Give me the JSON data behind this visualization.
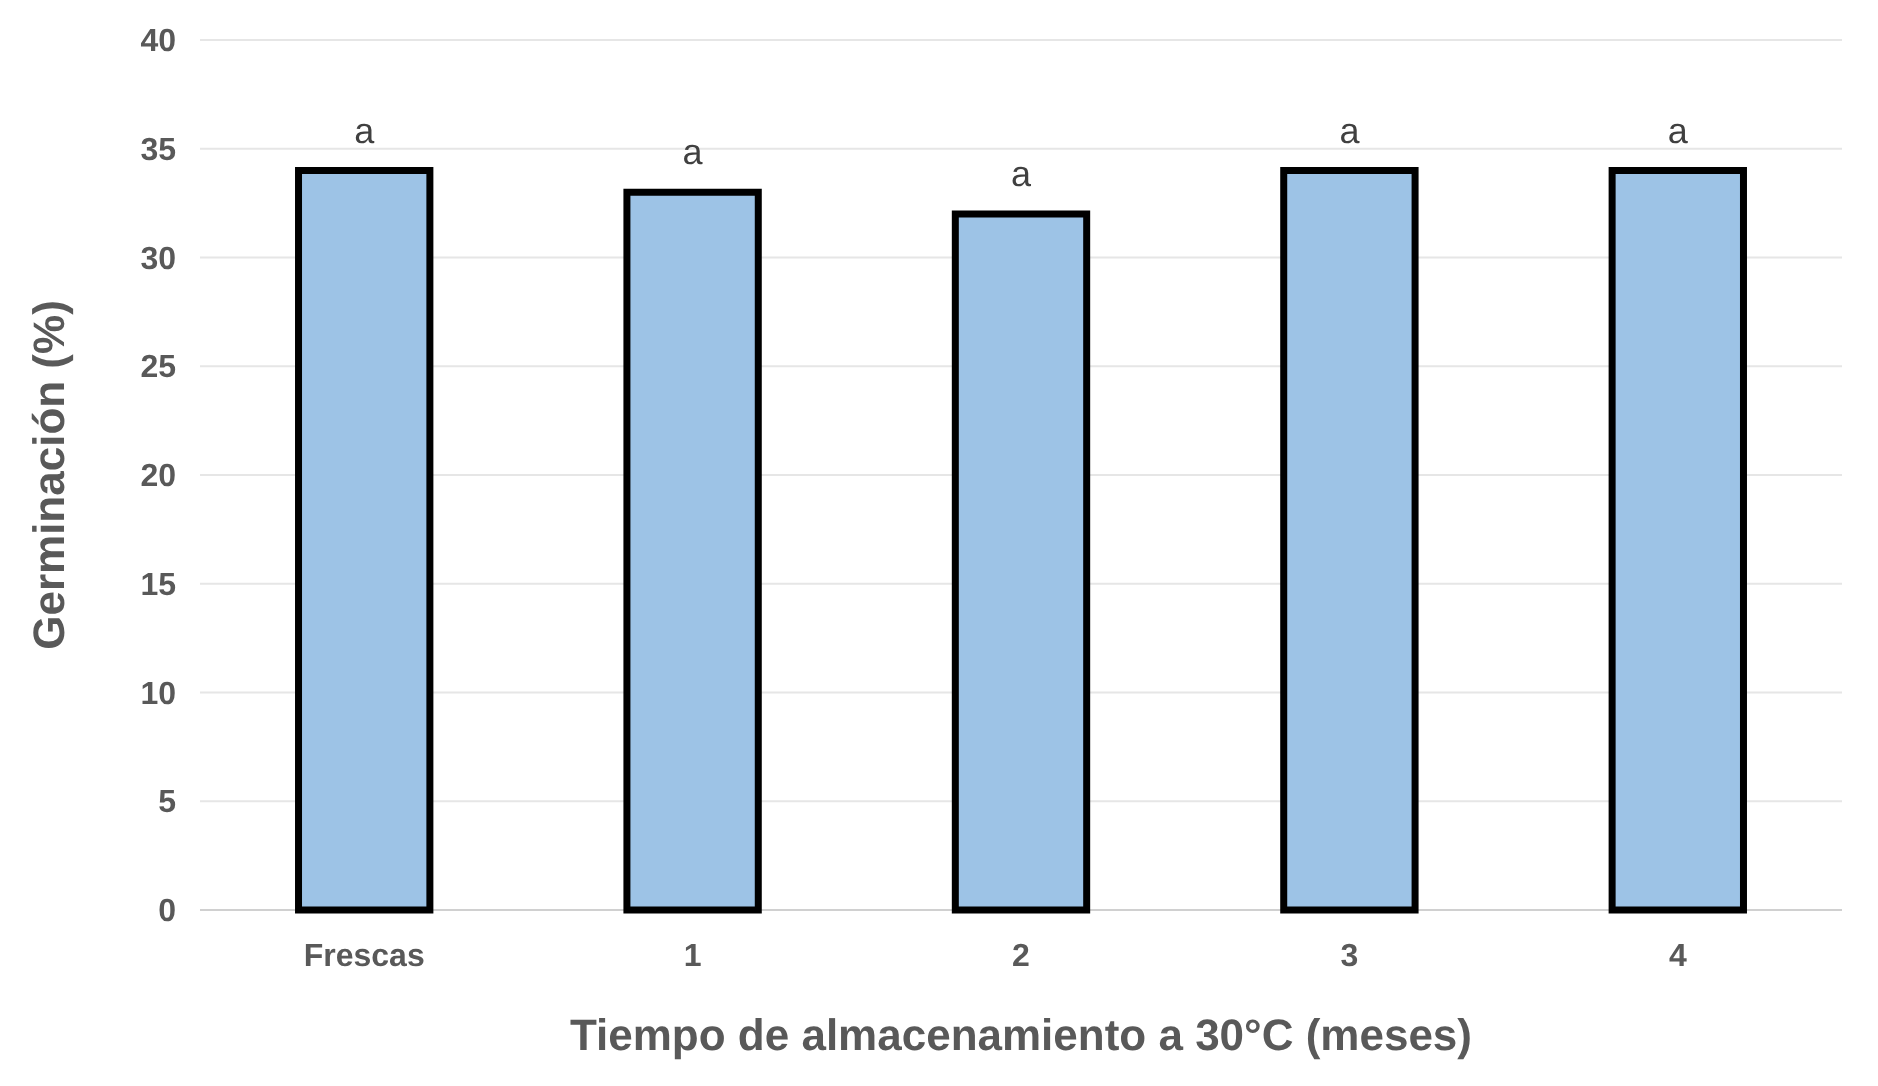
{
  "chart_data": {
    "type": "bar",
    "xlabel": "Tiempo de almacenamiento a 30°C (meses)",
    "ylabel": "Germinación (%)",
    "categories": [
      "Frescas",
      "1",
      "2",
      "3",
      "4"
    ],
    "values": [
      34,
      33,
      32,
      34,
      34
    ],
    "color": "#9dc3e6",
    "ylim": [
      0,
      40
    ],
    "yticks": [
      0,
      5,
      10,
      15,
      20,
      25,
      30,
      35,
      40
    ],
    "grid": "y",
    "annotations": [
      {
        "text": "a",
        "x": "Frescas",
        "y": 34
      },
      {
        "text": "a",
        "x": "1",
        "y": 33
      },
      {
        "text": "a",
        "x": "2",
        "y": 32
      },
      {
        "text": "a",
        "x": "3",
        "y": 34
      },
      {
        "text": "a",
        "x": "4",
        "y": 34
      }
    ]
  }
}
